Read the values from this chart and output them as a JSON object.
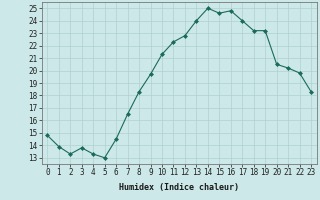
{
  "x": [
    0,
    1,
    2,
    3,
    4,
    5,
    6,
    7,
    8,
    9,
    10,
    11,
    12,
    13,
    14,
    15,
    16,
    17,
    18,
    19,
    20,
    21,
    22,
    23
  ],
  "y": [
    14.8,
    13.9,
    13.3,
    13.8,
    13.3,
    13.0,
    14.5,
    16.5,
    18.3,
    19.7,
    21.3,
    22.3,
    22.8,
    24.0,
    25.0,
    24.6,
    24.8,
    24.0,
    23.2,
    23.2,
    20.5,
    20.2,
    19.8,
    18.3
  ],
  "line_color": "#1a6b5a",
  "marker": "D",
  "marker_size": 2.0,
  "bg_color": "#cce8e8",
  "grid_color": "#b0d0d0",
  "xlabel": "Humidex (Indice chaleur)",
  "yticks": [
    13,
    14,
    15,
    16,
    17,
    18,
    19,
    20,
    21,
    22,
    23,
    24,
    25
  ],
  "xlim": [
    -0.5,
    23.5
  ],
  "ylim": [
    12.5,
    25.5
  ],
  "tick_fontsize": 5.5,
  "xlabel_fontsize": 6.0
}
